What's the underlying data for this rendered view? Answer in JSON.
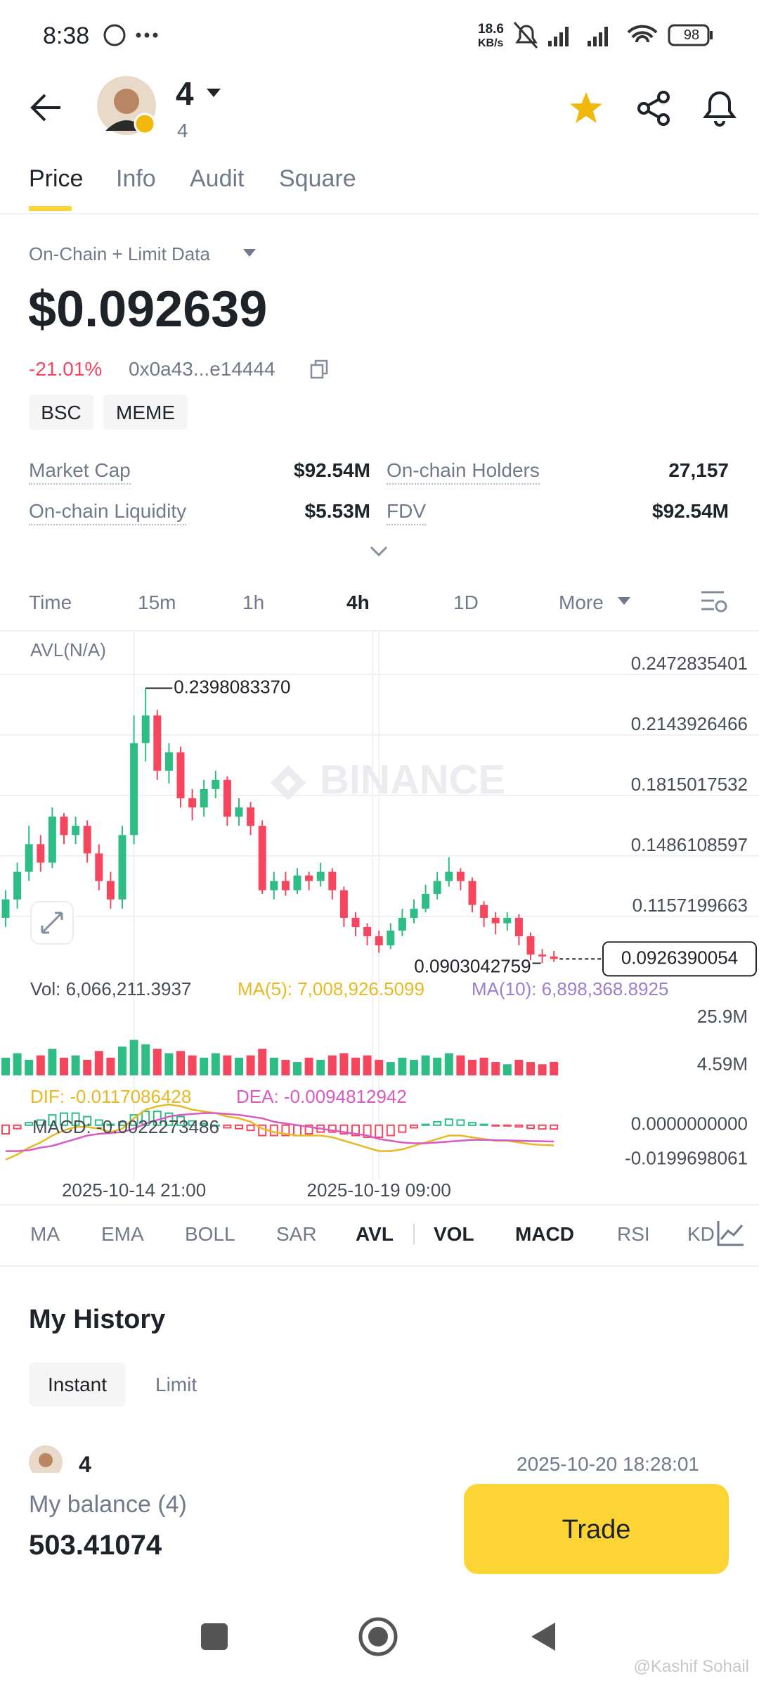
{
  "status_bar": {
    "time": "8:38",
    "speed": "18.6",
    "speed_unit": "KB/s",
    "battery": "98"
  },
  "header": {
    "title": "4",
    "subtitle": "4"
  },
  "tabs": [
    "Price",
    "Info",
    "Audit",
    "Square"
  ],
  "source": "On-Chain + Limit Data",
  "price": "$0.092639",
  "change": "-21.01%",
  "address": "0x0a43...e14444",
  "tags": [
    "BSC",
    "MEME"
  ],
  "stats": [
    {
      "label": "Market Cap",
      "value": "$92.54M"
    },
    {
      "label": "On-chain Holders",
      "value": "27,157"
    },
    {
      "label": "On-chain Liquidity",
      "value": "$5.53M"
    },
    {
      "label": "FDV",
      "value": "$92.54M"
    }
  ],
  "intervals": [
    "Time",
    "15m",
    "1h",
    "4h",
    "1D",
    "More"
  ],
  "chart_watermark": "BINANCE",
  "chart_data": [
    {
      "type": "candlestick",
      "indicator": "AVL(N/A)",
      "up_color": "#2ebd85",
      "down_color": "#f6465d",
      "x": [
        null,
        null,
        null,
        null,
        null,
        null,
        null,
        null,
        null,
        null,
        null,
        "2025-10-14 21:00",
        null,
        null,
        null,
        null,
        null,
        null,
        null,
        null,
        null,
        null,
        null,
        null,
        null,
        null,
        null,
        null,
        null,
        null,
        null,
        null,
        "2025-10-19 09:00",
        null,
        null,
        null,
        null,
        null,
        null,
        null,
        null,
        null,
        null,
        null,
        null,
        null,
        null,
        null
      ],
      "open": [
        0.115,
        0.125,
        0.14,
        0.155,
        0.145,
        0.17,
        0.16,
        0.165,
        0.15,
        0.135,
        0.125,
        0.16,
        0.21,
        0.225,
        0.195,
        0.205,
        0.18,
        0.175,
        0.185,
        0.19,
        0.17,
        0.175,
        0.165,
        0.13,
        0.135,
        0.13,
        0.138,
        0.135,
        0.14,
        0.13,
        0.115,
        0.11,
        0.105,
        0.1,
        0.108,
        0.115,
        0.12,
        0.128,
        0.135,
        0.14,
        0.135,
        0.122,
        0.115,
        0.112,
        0.115,
        0.105,
        0.095,
        0.094
      ],
      "high": [
        0.13,
        0.145,
        0.165,
        0.16,
        0.175,
        0.172,
        0.17,
        0.168,
        0.155,
        0.14,
        0.165,
        0.225,
        0.239808337,
        0.228,
        0.21,
        0.208,
        0.185,
        0.19,
        0.195,
        0.192,
        0.18,
        0.178,
        0.168,
        0.14,
        0.14,
        0.142,
        0.14,
        0.145,
        0.142,
        0.132,
        0.118,
        0.112,
        0.108,
        0.112,
        0.12,
        0.125,
        0.133,
        0.14,
        0.148,
        0.142,
        0.137,
        0.124,
        0.118,
        0.118,
        0.117,
        0.107,
        0.098,
        0.097
      ],
      "low": [
        0.11,
        0.12,
        0.135,
        0.14,
        0.142,
        0.155,
        0.155,
        0.145,
        0.13,
        0.12,
        0.12,
        0.155,
        0.2,
        0.19,
        0.188,
        0.175,
        0.168,
        0.17,
        0.18,
        0.165,
        0.165,
        0.16,
        0.128,
        0.125,
        0.127,
        0.128,
        0.13,
        0.132,
        0.125,
        0.11,
        0.105,
        0.1,
        0.096,
        0.098,
        0.105,
        0.112,
        0.118,
        0.125,
        0.132,
        0.13,
        0.118,
        0.11,
        0.106,
        0.108,
        0.1,
        0.092,
        0.0903042759,
        0.091
      ],
      "close": [
        0.125,
        0.14,
        0.155,
        0.145,
        0.17,
        0.16,
        0.165,
        0.15,
        0.135,
        0.125,
        0.16,
        0.21,
        0.225,
        0.195,
        0.205,
        0.18,
        0.175,
        0.185,
        0.19,
        0.17,
        0.175,
        0.165,
        0.13,
        0.135,
        0.13,
        0.138,
        0.135,
        0.14,
        0.13,
        0.115,
        0.11,
        0.105,
        0.1,
        0.108,
        0.115,
        0.12,
        0.128,
        0.135,
        0.14,
        0.135,
        0.122,
        0.115,
        0.112,
        0.115,
        0.105,
        0.095,
        0.094,
        0.0926390054
      ],
      "markers": {
        "high": {
          "value": 0.239808337,
          "label": "0.2398083370"
        },
        "low": 0.0903042759,
        "last": 0.0926390054
      },
      "ylim": [
        0.0821,
        0.2706
      ],
      "yticks": [
        0.2472835401,
        0.2143926466,
        0.1815017532,
        0.1486108597,
        0.1157199663
      ],
      "grid": true
    },
    {
      "type": "bar",
      "up_color": "#2ebd85",
      "down_color": "#f6465d",
      "legend": [
        {
          "label": "Vol: 6,066,211.3937",
          "color": "#474d57"
        },
        {
          "label": "MA(5): 7,008,926.5099",
          "color": "#e8b923"
        },
        {
          "label": "MA(10): 6,898,368.8925",
          "color": "#9b7fd1"
        }
      ],
      "values": [
        8000000,
        10000000,
        7000000,
        9000000,
        12000000,
        8000000,
        9000000,
        7000000,
        11000000,
        8000000,
        13000000,
        16000000,
        14000000,
        12000000,
        10000000,
        11000000,
        9000000,
        8000000,
        10000000,
        9000000,
        8000000,
        9000000,
        12000000,
        8000000,
        7000000,
        6000000,
        8000000,
        7000000,
        9000000,
        10000000,
        8000000,
        9000000,
        7000000,
        6000000,
        8000000,
        7000000,
        9000000,
        8000000,
        10000000,
        9000000,
        7000000,
        8000000,
        6000000,
        5000000,
        7000000,
        6000000,
        5000000,
        6066211.3937
      ],
      "ylim": [
        0,
        32000000
      ],
      "yticks": [
        {
          "value": 25900000,
          "label": "25.9M"
        },
        {
          "value": 4590000,
          "label": "4.59M"
        }
      ]
    },
    {
      "type": "macd",
      "up_color": "#2ebd85",
      "down_color": "#f6465d",
      "series": [
        {
          "label": "DIF: -0.0117086428",
          "color": "#e8b923",
          "values": [
            -0.02,
            -0.017,
            -0.013,
            -0.01,
            -0.006,
            -0.003,
            -0.001,
            -0.001,
            -0.002,
            -0.004,
            -0.002,
            0.004,
            0.009,
            0.011,
            0.012,
            0.011,
            0.009,
            0.008,
            0.007,
            0.005,
            0.004,
            0.002,
            -0.002,
            -0.004,
            -0.005,
            -0.006,
            -0.006,
            -0.006,
            -0.007,
            -0.009,
            -0.011,
            -0.013,
            -0.015,
            -0.015,
            -0.014,
            -0.012,
            -0.01,
            -0.008,
            -0.006,
            -0.006,
            -0.007,
            -0.008,
            -0.009,
            -0.009,
            -0.01,
            -0.011,
            -0.0115,
            -0.0117086428
          ]
        },
        {
          "label": "DEA: -0.0094812942",
          "color": "#d85bc1",
          "values": [
            -0.015,
            -0.015,
            -0.0145,
            -0.013,
            -0.012,
            -0.01,
            -0.008,
            -0.006,
            -0.005,
            -0.0045,
            -0.004,
            -0.002,
            0.001,
            0.003,
            0.005,
            0.006,
            0.0065,
            0.007,
            0.007,
            0.0065,
            0.006,
            0.005,
            0.004,
            0.002,
            0.001,
            0,
            -0.001,
            -0.002,
            -0.003,
            -0.004,
            -0.005,
            -0.006,
            -0.008,
            -0.009,
            -0.01,
            -0.0105,
            -0.0105,
            -0.01,
            -0.0095,
            -0.009,
            -0.0085,
            -0.0085,
            -0.0087,
            -0.0088,
            -0.009,
            -0.0092,
            -0.0093,
            -0.0094812942
          ]
        },
        {
          "label": "MACD: -0.0022273486",
          "color": "#474d57",
          "values": [
            -0.005,
            -0.002,
            0.0015,
            0.003,
            0.006,
            0.007,
            0.007,
            0.005,
            0.003,
            0.0005,
            0.002,
            0.006,
            0.008,
            0.008,
            0.007,
            0.005,
            0.0025,
            0.001,
            0,
            -0.0015,
            -0.002,
            -0.003,
            -0.006,
            -0.006,
            -0.006,
            -0.006,
            -0.005,
            -0.004,
            -0.004,
            -0.005,
            -0.006,
            -0.007,
            -0.007,
            -0.006,
            -0.004,
            -0.0015,
            0.0005,
            0.002,
            0.0035,
            0.003,
            0.0015,
            0.0005,
            -0.0003,
            -0.0002,
            -0.001,
            -0.0018,
            -0.0022,
            -0.0022273486
          ]
        }
      ],
      "ylim": [
        -0.027,
        0.024
      ],
      "yticks": [
        {
          "value": 0,
          "label": "0.0000000000"
        },
        -0.0199698061
      ]
    }
  ],
  "indicators": [
    "MA",
    "EMA",
    "BOLL",
    "SAR",
    "AVL",
    "VOL",
    "MACD",
    "RSI",
    "KD"
  ],
  "history": {
    "title": "My History",
    "tabs": [
      "Instant",
      "Limit"
    ],
    "row": {
      "token": "4",
      "time": "2025-10-20 18:28:01"
    }
  },
  "balance": {
    "label": "My balance (4)",
    "value": "503.41074"
  },
  "trade": "Trade",
  "watermark": "@Kashif Sohail"
}
